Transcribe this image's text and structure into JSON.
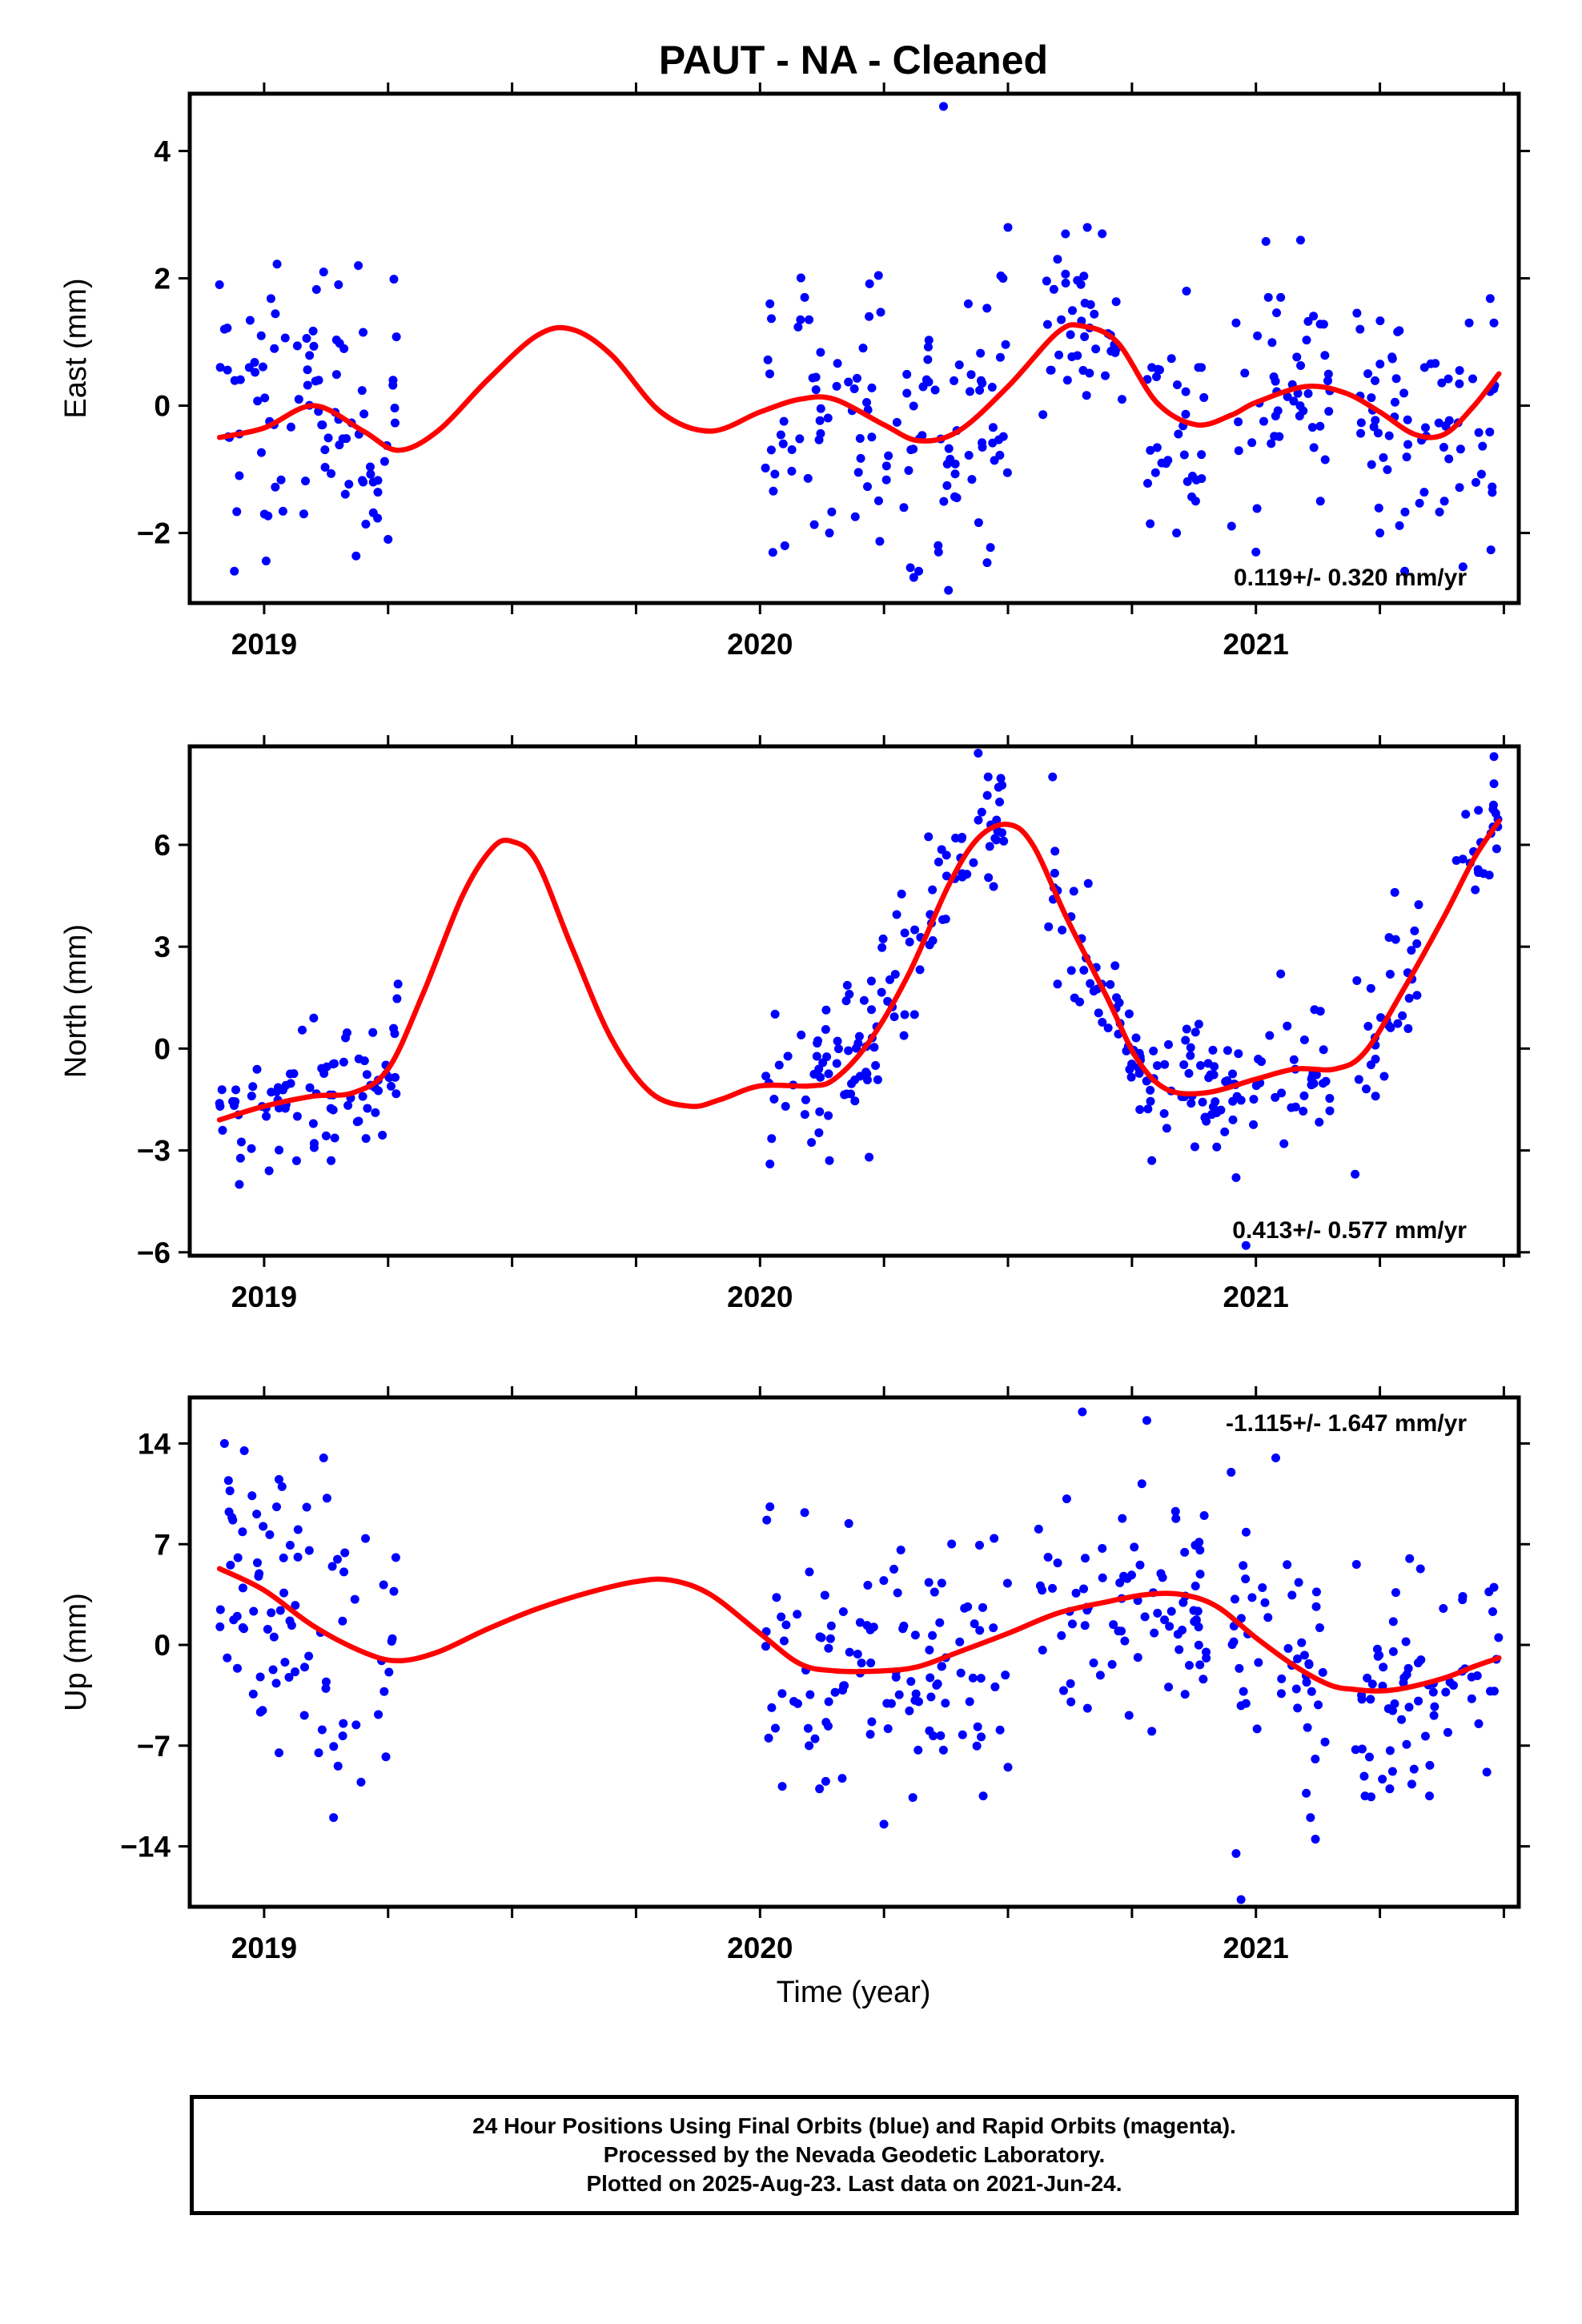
{
  "title": "PAUT  - NA - Cleaned",
  "colors": {
    "points": "#0000ff",
    "fit": "#ff0000",
    "axis": "#000000"
  },
  "xlabel": "Time (year)",
  "x_tick_labels": [
    "2019",
    "2020",
    "2021"
  ],
  "footer": [
    "24 Hour Positions Using Final Orbits (blue) and Rapid Orbits (magenta).",
    "Processed by the Nevada Geodetic Laboratory.",
    "Plotted on 2025-Aug-23. Last data on 2021-Jun-24."
  ],
  "chart_data": [
    {
      "type": "scatter",
      "ylabel": "East (mm)",
      "xlim": [
        2018.85,
        2021.53
      ],
      "ylim": [
        -3.1,
        4.9
      ],
      "yticks": [
        -2,
        0,
        2,
        4
      ],
      "xticks_major": [
        2019,
        2020,
        2021
      ],
      "xticks_minor": [
        2019.25,
        2019.5,
        2019.75,
        2020.25,
        2020.5,
        2020.75,
        2021.25,
        2021.5
      ],
      "annotation": "0.119+/- 0.320 mm/yr",
      "annotation_position": "bottom-right",
      "grid": false,
      "series": [
        {
          "type": "scatter",
          "color": "#0000ff",
          "clusters": [
            {
              "x_start": 2018.91,
              "x_end": 2019.27,
              "center": 0.2,
              "spread": 1.0,
              "samples": [
                [
                  2018.91,
                  1.9
                ],
                [
                  2018.92,
                  1.2
                ],
                [
                  2018.93,
                  -0.5
                ],
                [
                  2018.94,
                  -2.6
                ],
                [
                  2018.95,
                  -1.1
                ],
                [
                  2018.97,
                  0.6
                ],
                [
                  2019.02,
                  -0.3
                ],
                [
                  2019.08,
                  -1.7
                ],
                [
                  2019.11,
                  0.4
                ],
                [
                  2019.12,
                  2.1
                ],
                [
                  2019.15,
                  1.9
                ],
                [
                  2019.19,
                  2.2
                ],
                [
                  2019.22,
                  -1.2
                ],
                [
                  2019.25,
                  -2.1
                ],
                [
                  2019.26,
                  0.4
                ]
              ]
            },
            {
              "x_start": 2020.01,
              "x_end": 2020.5,
              "center": -0.4,
              "spread": 1.0,
              "samples": [
                [
                  2020.02,
                  1.6
                ],
                [
                  2020.05,
                  -2.2
                ],
                [
                  2020.09,
                  1.7
                ],
                [
                  2020.14,
                  -2.0
                ],
                [
                  2020.22,
                  1.4
                ],
                [
                  2020.29,
                  -1.6
                ],
                [
                  2020.32,
                  -2.6
                ],
                [
                  2020.36,
                  -2.3
                ],
                [
                  2020.38,
                  -2.9
                ],
                [
                  2020.37,
                  4.7
                ],
                [
                  2020.42,
                  1.6
                ],
                [
                  2020.49,
                  2.0
                ],
                [
                  2020.5,
                  2.8
                ]
              ]
            },
            {
              "x_start": 2020.57,
              "x_end": 2020.73,
              "center": 1.2,
              "spread": 0.7,
              "samples": [
                [
                  2020.6,
                  2.3
                ],
                [
                  2020.66,
                  2.8
                ],
                [
                  2020.69,
                  2.7
                ],
                [
                  2020.73,
                  0.1
                ],
                [
                  2020.62,
                  0.4
                ]
              ]
            },
            {
              "x_start": 2020.78,
              "x_end": 2020.9,
              "center": -0.4,
              "spread": 0.8,
              "samples": [
                [
                  2020.79,
                  0.6
                ],
                [
                  2020.81,
                  -0.9
                ],
                [
                  2020.84,
                  -2.0
                ],
                [
                  2020.86,
                  1.8
                ],
                [
                  2020.89,
                  0.6
                ]
              ]
            },
            {
              "x_start": 2020.95,
              "x_end": 2021.15,
              "center": 0.3,
              "spread": 0.9,
              "samples": [
                [
                  2020.96,
                  1.3
                ],
                [
                  2021.0,
                  -2.3
                ],
                [
                  2021.05,
                  1.7
                ],
                [
                  2021.09,
                  2.6
                ],
                [
                  2021.13,
                  -1.5
                ]
              ]
            },
            {
              "x_start": 2021.2,
              "x_end": 2021.49,
              "center": -0.4,
              "spread": 0.9,
              "samples": [
                [
                  2021.21,
                  1.2
                ],
                [
                  2021.25,
                  -2.0
                ],
                [
                  2021.3,
                  -2.6
                ],
                [
                  2021.34,
                  0.6
                ],
                [
                  2021.38,
                  -1.5
                ],
                [
                  2021.43,
                  1.3
                ],
                [
                  2021.48,
                  1.3
                ]
              ]
            }
          ]
        },
        {
          "type": "line",
          "color": "#ff0000",
          "x": [
            2018.91,
            2019.0,
            2019.1,
            2019.2,
            2019.27,
            2019.35,
            2019.45,
            2019.55,
            2019.62,
            2019.7,
            2019.8,
            2019.9,
            2020.0,
            2020.08,
            2020.15,
            2020.25,
            2020.32,
            2020.4,
            2020.5,
            2020.6,
            2020.65,
            2020.72,
            2020.8,
            2020.88,
            2020.95,
            2021.0,
            2021.1,
            2021.18,
            2021.25,
            2021.32,
            2021.38,
            2021.44,
            2021.49
          ],
          "y": [
            -0.5,
            -0.35,
            0.0,
            -0.4,
            -0.7,
            -0.4,
            0.4,
            1.1,
            1.2,
            0.8,
            -0.1,
            -0.4,
            -0.1,
            0.1,
            0.1,
            -0.3,
            -0.55,
            -0.4,
            0.3,
            1.15,
            1.25,
            1.0,
            0.05,
            -0.3,
            -0.15,
            0.05,
            0.3,
            0.2,
            -0.1,
            -0.45,
            -0.45,
            0.0,
            0.5
          ]
        }
      ]
    },
    {
      "type": "scatter",
      "ylabel": "North (mm)",
      "xlim": [
        2018.85,
        2021.53
      ],
      "ylim": [
        -6.1,
        8.9
      ],
      "yticks": [
        -6,
        -3,
        0,
        3,
        6
      ],
      "xticks_major": [
        2019,
        2020,
        2021
      ],
      "xticks_minor": [
        2019.25,
        2019.5,
        2019.75,
        2020.25,
        2020.5,
        2020.75,
        2021.25,
        2021.5
      ],
      "annotation": "0.413+/- 0.577 mm/yr",
      "annotation_position": "bottom-right",
      "grid": false,
      "series": [
        {
          "type": "scatter",
          "color": "#0000ff",
          "clusters": [
            {
              "x_start": 2018.91,
              "x_end": 2019.27,
              "trend_start": -2.1,
              "trend_end": -0.5,
              "spread": 0.9,
              "samples": [
                [
                  2018.95,
                  -4.0
                ],
                [
                  2019.01,
                  -3.6
                ],
                [
                  2019.1,
                  0.9
                ],
                [
                  2019.27,
                  1.9
                ]
              ]
            },
            {
              "x_start": 2020.01,
              "x_end": 2020.22,
              "trend_start": -1.0,
              "trend_end": -1.0,
              "spread": 1.0,
              "samples": [
                [
                  2020.02,
                  -3.4
                ],
                [
                  2020.14,
                  -3.3
                ],
                [
                  2020.18,
                  1.6
                ],
                [
                  2020.22,
                  -3.2
                ]
              ]
            },
            {
              "x_start": 2020.22,
              "x_end": 2020.5,
              "trend_start": -0.8,
              "trend_end": 6.5,
              "spread": 1.1,
              "samples": [
                [
                  2020.44,
                  8.7
                ],
                [
                  2020.46,
                  8.0
                ]
              ]
            },
            {
              "x_start": 2020.57,
              "x_end": 2020.8,
              "trend_start": 6.0,
              "trend_end": -0.8,
              "spread": 0.9,
              "samples": [
                [
                  2020.59,
                  8.0
                ],
                [
                  2020.6,
                  1.9
                ],
                [
                  2020.79,
                  -3.3
                ]
              ]
            },
            {
              "x_start": 2020.8,
              "x_end": 2021.15,
              "trend_start": -1.2,
              "trend_end": -0.6,
              "spread": 0.9,
              "samples": [
                [
                  2020.96,
                  -3.8
                ],
                [
                  2020.98,
                  -5.8
                ],
                [
                  2021.05,
                  2.2
                ],
                [
                  2021.13,
                  1.1
                ]
              ]
            },
            {
              "x_start": 2021.2,
              "x_end": 2021.33,
              "trend_start": -2.0,
              "trend_end": 2.5,
              "spread": 0.9,
              "samples": [
                [
                  2021.2,
                  -3.7
                ],
                [
                  2021.28,
                  4.6
                ]
              ]
            },
            {
              "x_start": 2021.4,
              "x_end": 2021.49,
              "trend_start": 4.4,
              "trend_end": 6.6,
              "spread": 0.8,
              "samples": [
                [
                  2021.48,
                  8.6
                ],
                [
                  2021.48,
                  7.8
                ]
              ]
            }
          ]
        },
        {
          "type": "line",
          "color": "#ff0000",
          "x": [
            2018.91,
            2019.0,
            2019.1,
            2019.18,
            2019.25,
            2019.32,
            2019.4,
            2019.46,
            2019.5,
            2019.55,
            2019.62,
            2019.7,
            2019.78,
            2019.86,
            2019.92,
            2020.0,
            2020.1,
            2020.15,
            2020.22,
            2020.3,
            2020.38,
            2020.44,
            2020.5,
            2020.55,
            2020.62,
            2020.7,
            2020.76,
            2020.82,
            2020.9,
            2021.0,
            2021.08,
            2021.16,
            2021.22,
            2021.3,
            2021.38,
            2021.44,
            2021.49
          ],
          "y": [
            -2.1,
            -1.7,
            -1.4,
            -1.3,
            -0.6,
            1.6,
            4.5,
            5.9,
            6.1,
            5.5,
            3.0,
            0.3,
            -1.3,
            -1.7,
            -1.5,
            -1.1,
            -1.1,
            -0.9,
            0.2,
            2.2,
            4.8,
            6.2,
            6.6,
            6.0,
            3.8,
            1.5,
            -0.3,
            -1.2,
            -1.3,
            -0.9,
            -0.6,
            -0.6,
            -0.1,
            1.8,
            3.9,
            5.6,
            6.7
          ]
        }
      ]
    },
    {
      "type": "scatter",
      "ylabel": "Up (mm)",
      "xlim": [
        2018.85,
        2021.53
      ],
      "ylim": [
        -18.2,
        17.2
      ],
      "yticks": [
        -14,
        -7,
        0,
        7,
        14
      ],
      "xticks_major": [
        2019,
        2020,
        2021
      ],
      "xticks_minor": [
        2019.25,
        2019.5,
        2019.75,
        2020.25,
        2020.5,
        2020.75,
        2021.25,
        2021.5
      ],
      "annotation": "-1.115+/- 1.647 mm/yr",
      "annotation_position": "top-right",
      "grid": false,
      "series": [
        {
          "type": "scatter",
          "color": "#0000ff",
          "clusters": [
            {
              "x_start": 2018.91,
              "x_end": 2019.27,
              "trend_start": 6.0,
              "trend_end": -2.0,
              "spread": 4.5,
              "samples": [
                [
                  2018.92,
                  14.0
                ],
                [
                  2018.96,
                  13.5
                ],
                [
                  2019.03,
                  11.5
                ],
                [
                  2019.12,
                  13.0
                ],
                [
                  2019.14,
                  -12.0
                ],
                [
                  2019.03,
                  -7.5
                ],
                [
                  2019.11,
                  -7.5
                ]
              ]
            },
            {
              "x_start": 2020.01,
              "x_end": 2020.5,
              "trend_start": 1.0,
              "trend_end": -1.5,
              "spread": 4.5,
              "samples": [
                [
                  2020.02,
                  9.6
                ],
                [
                  2020.09,
                  9.2
                ],
                [
                  2020.12,
                  -10.0
                ],
                [
                  2020.45,
                  -10.5
                ],
                [
                  2020.5,
                  -8.5
                ]
              ]
            },
            {
              "x_start": 2020.55,
              "x_end": 2020.9,
              "trend_start": 2.0,
              "trend_end": 3.0,
              "spread": 4.0,
              "samples": [
                [
                  2020.65,
                  16.2
                ],
                [
                  2020.78,
                  15.6
                ],
                [
                  2020.77,
                  11.2
                ],
                [
                  2020.79,
                  -6.0
                ]
              ]
            },
            {
              "x_start": 2020.95,
              "x_end": 2021.15,
              "trend_start": 1.0,
              "trend_end": -1.5,
              "spread": 4.0,
              "samples": [
                [
                  2020.95,
                  12.0
                ],
                [
                  2021.04,
                  13.0
                ],
                [
                  2020.96,
                  -14.5
                ],
                [
                  2020.97,
                  -17.7
                ],
                [
                  2021.11,
                  -12.0
                ],
                [
                  2021.12,
                  -13.5
                ]
              ]
            },
            {
              "x_start": 2021.2,
              "x_end": 2021.49,
              "trend_start": -2.5,
              "trend_end": -0.5,
              "spread": 3.8,
              "samples": [
                [
                  2021.22,
                  -10.5
                ],
                [
                  2021.27,
                  -10.0
                ],
                [
                  2021.35,
                  -10.5
                ],
                [
                  2021.31,
                  6.0
                ],
                [
                  2021.48,
                  4.0
                ]
              ]
            }
          ]
        },
        {
          "type": "line",
          "color": "#ff0000",
          "x": [
            2018.91,
            2019.0,
            2019.1,
            2019.2,
            2019.27,
            2019.35,
            2019.45,
            2019.55,
            2019.65,
            2019.75,
            2019.82,
            2019.9,
            2020.0,
            2020.08,
            2020.15,
            2020.25,
            2020.32,
            2020.4,
            2020.5,
            2020.6,
            2020.7,
            2020.78,
            2020.85,
            2020.92,
            2021.0,
            2021.08,
            2021.15,
            2021.2,
            2021.25,
            2021.3,
            2021.38,
            2021.44,
            2021.49
          ],
          "y": [
            5.3,
            3.8,
            1.3,
            -0.5,
            -1.1,
            -0.5,
            1.1,
            2.5,
            3.6,
            4.4,
            4.5,
            3.5,
            0.8,
            -1.3,
            -1.8,
            -1.8,
            -1.5,
            -0.5,
            0.8,
            2.2,
            3.0,
            3.5,
            3.5,
            2.7,
            0.5,
            -1.5,
            -2.8,
            -3.1,
            -3.2,
            -3.0,
            -2.3,
            -1.5,
            -0.9
          ]
        }
      ]
    }
  ]
}
